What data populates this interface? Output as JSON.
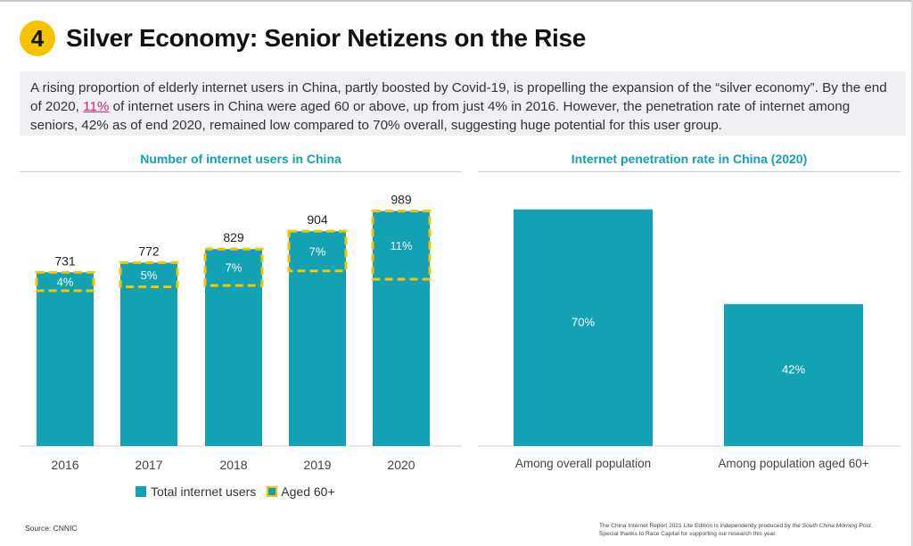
{
  "header": {
    "number": "4",
    "title": "Silver Economy: Senior Netizens on the Rise"
  },
  "intro": {
    "part1": "A rising proportion of elderly internet users in China, partly boosted by Covid-19, is propelling the expansion of the “silver economy”. By the end of 2020, ",
    "highlight": "11%",
    "part2": " of internet users in China were aged 60 or above, up from just 4% in 2016. However, the penetration rate of internet among seniors, 42% as of end 2020, remained low compared to 70% overall, suggesting huge potential for this user group."
  },
  "colors": {
    "teal": "#13a2b4",
    "yellow": "#f5c400",
    "title_teal": "#13a2b4",
    "highlight": "#d6247a"
  },
  "chart_data": [
    {
      "type": "bar",
      "title": "Number of internet users in China",
      "categories": [
        "2016",
        "2017",
        "2018",
        "2019",
        "2020"
      ],
      "series": [
        {
          "name": "Total internet users",
          "values": [
            731,
            772,
            829,
            904,
            989
          ]
        },
        {
          "name": "Aged 60+",
          "share_percent": [
            4,
            5,
            7,
            7,
            11
          ],
          "labels": [
            "4%",
            "5%",
            "7%",
            "7%",
            "11%"
          ]
        }
      ],
      "value_labels": [
        "731",
        "772",
        "829",
        "904",
        "989"
      ],
      "legend": [
        "Total internet users",
        "Aged 60+"
      ],
      "legend_position": "bottom"
    },
    {
      "type": "bar",
      "title": "Internet penetration rate in China (2020)",
      "categories": [
        "Among overall population",
        "Among population aged 60+"
      ],
      "values": [
        70,
        42
      ],
      "labels": [
        "70%",
        "42%"
      ]
    }
  ],
  "footer": {
    "source": "Source: CNNIC",
    "note_line1_a": "The China Internet Report 2021 Lite Edition is independently produced by the ",
    "note_line1_b": "South China Morning Post",
    "note_line1_c": ".",
    "note_line2": "Special thanks to Race Capital for supporting our research this year."
  }
}
